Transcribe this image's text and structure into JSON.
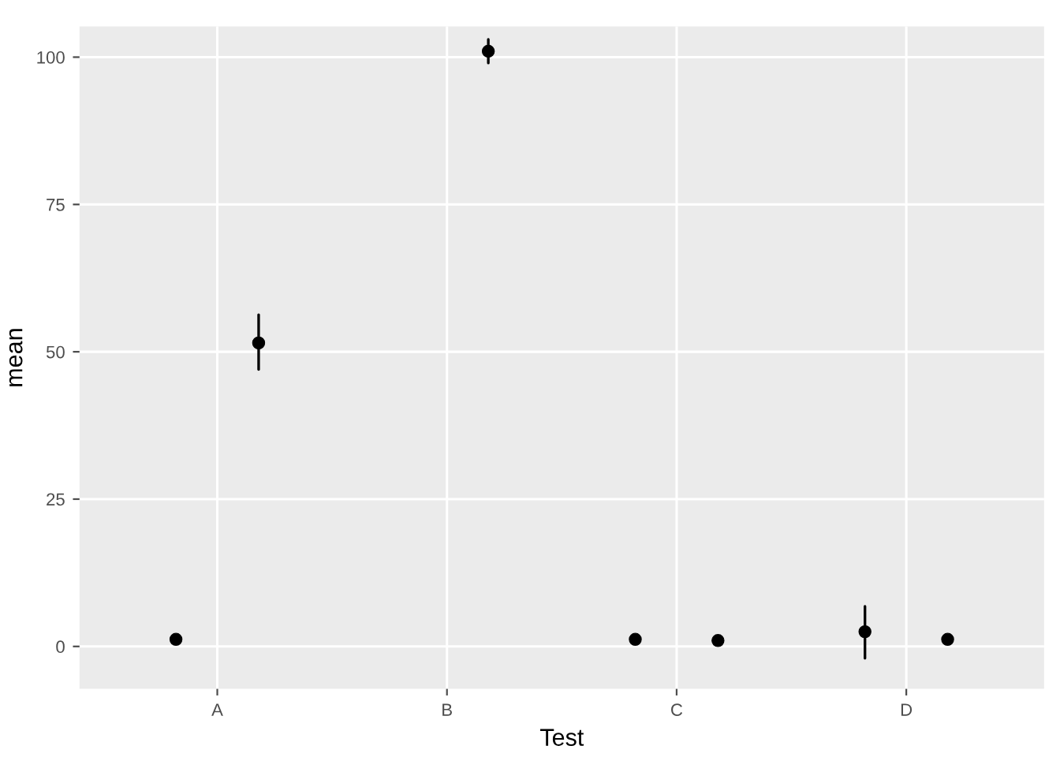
{
  "chart_data": {
    "type": "scatter",
    "xlabel": "Test",
    "ylabel": "mean",
    "categories": [
      "A",
      "B",
      "C",
      "D"
    ],
    "series": [
      {
        "color": "#000000",
        "values": [
          1.2,
          null,
          1.2,
          2.5
        ],
        "errors": [
          null,
          null,
          null,
          [
            -2,
            6.8
          ]
        ]
      },
      {
        "color": "#000000",
        "values": [
          51.5,
          101,
          1,
          1.2
        ],
        "errors": [
          [
            47,
            56.3
          ],
          [
            99,
            103
          ],
          null,
          null
        ]
      }
    ],
    "marker": "circle",
    "ylim": [
      -7.2,
      105.2
    ],
    "yticks": [
      0,
      25,
      50,
      75,
      100
    ],
    "grid": true
  }
}
